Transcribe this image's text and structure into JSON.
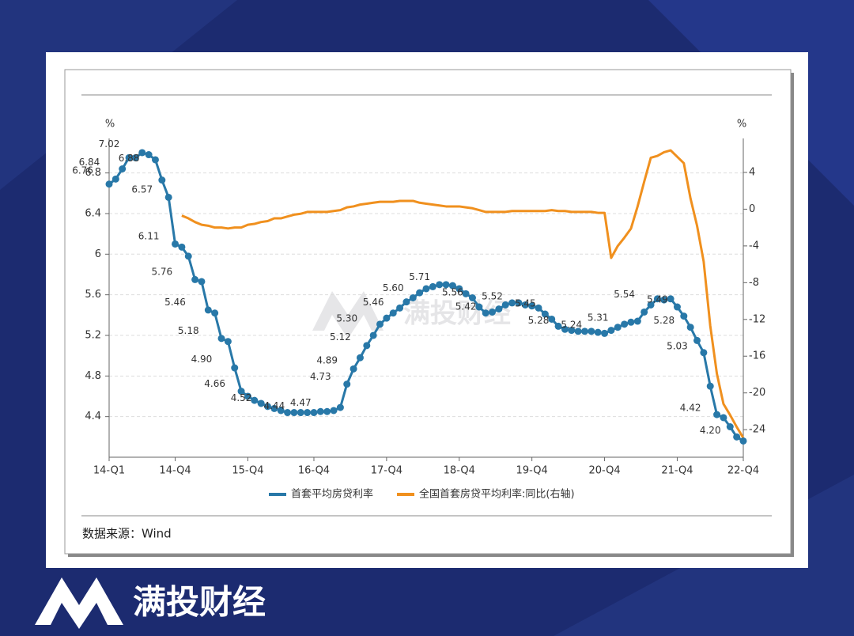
{
  "brand": "满投财经",
  "chart_data": {
    "type": "line",
    "ylabel": "%",
    "y2label": "%",
    "source": "数据来源：Wind",
    "categories": [
      "14-Q1",
      null,
      null,
      null,
      null,
      null,
      null,
      null,
      null,
      null,
      "14-Q4",
      null,
      null,
      null,
      null,
      null,
      null,
      null,
      null,
      null,
      null,
      "15-Q4",
      null,
      null,
      null,
      null,
      null,
      null,
      null,
      null,
      null,
      "16-Q4",
      null,
      null,
      null,
      null,
      null,
      null,
      null,
      null,
      null,
      null,
      "17-Q4",
      null,
      null,
      null,
      null,
      null,
      null,
      null,
      null,
      null,
      null,
      "18-Q4",
      null,
      null,
      null,
      null,
      null,
      null,
      null,
      null,
      null,
      null,
      "19-Q4",
      null,
      null,
      null,
      null,
      null,
      null,
      null,
      null,
      null,
      null,
      "20-Q4",
      null,
      null,
      null,
      null,
      null,
      null,
      null,
      null,
      null,
      null,
      "21-Q4",
      null,
      null,
      null,
      null,
      null,
      null,
      null,
      null,
      null,
      "22-Q4"
    ],
    "series": [
      {
        "name": "首套平均房贷利率",
        "color": "#2878a8",
        "markers": true,
        "values": [
          6.69,
          6.74,
          6.84,
          6.95,
          6.95,
          7.0,
          6.98,
          6.93,
          6.73,
          6.56,
          6.1,
          6.07,
          5.98,
          5.75,
          5.73,
          5.45,
          5.42,
          5.17,
          5.14,
          4.88,
          4.65,
          4.6,
          4.56,
          4.53,
          4.5,
          4.48,
          4.46,
          4.44,
          4.44,
          4.44,
          4.44,
          4.44,
          4.45,
          4.45,
          4.46,
          4.49,
          4.72,
          4.87,
          4.98,
          5.1,
          5.2,
          5.31,
          5.37,
          5.42,
          5.47,
          5.53,
          5.57,
          5.62,
          5.66,
          5.68,
          5.7,
          5.7,
          5.69,
          5.66,
          5.61,
          5.57,
          5.48,
          5.42,
          5.43,
          5.46,
          5.5,
          5.52,
          5.52,
          5.5,
          5.49,
          5.47,
          5.41,
          5.36,
          5.29,
          5.26,
          5.25,
          5.24,
          5.24,
          5.24,
          5.23,
          5.22,
          5.25,
          5.28,
          5.31,
          5.33,
          5.34,
          5.43,
          5.5,
          5.56,
          5.55,
          5.56,
          5.48,
          5.39,
          5.28,
          5.15,
          5.03,
          4.7,
          4.42,
          4.39,
          4.3,
          4.2,
          4.16
        ]
      },
      {
        "name": "全国首套房贷平均利率:同比(右轴)",
        "color": "#f0901e",
        "axis": "y2",
        "markers": false,
        "values": [
          null,
          null,
          null,
          null,
          null,
          null,
          null,
          null,
          null,
          null,
          null,
          -0.7,
          -1.0,
          -1.4,
          -1.7,
          -1.8,
          -2.0,
          -2.0,
          -2.1,
          -2.0,
          -2.0,
          -1.7,
          -1.6,
          -1.4,
          -1.3,
          -1.0,
          -1.0,
          -0.8,
          -0.6,
          -0.5,
          -0.3,
          -0.3,
          -0.3,
          -0.3,
          -0.2,
          -0.1,
          0.2,
          0.3,
          0.5,
          0.6,
          0.7,
          0.8,
          0.8,
          0.8,
          0.9,
          0.9,
          0.9,
          0.7,
          0.6,
          0.5,
          0.4,
          0.3,
          0.3,
          0.3,
          0.2,
          0.1,
          -0.1,
          -0.3,
          -0.3,
          -0.3,
          -0.3,
          -0.2,
          -0.2,
          -0.2,
          -0.2,
          -0.2,
          -0.2,
          -0.1,
          -0.2,
          -0.2,
          -0.3,
          -0.3,
          -0.3,
          -0.3,
          -0.4,
          -0.4,
          -5.3,
          -4.0,
          -3.1,
          -2.1,
          0.3,
          3.0,
          5.6,
          5.8,
          6.2,
          6.4,
          5.7,
          5.0,
          1.2,
          -1.8,
          -5.7,
          -12.7,
          -17.9,
          -21.2,
          -22.4,
          -23.7,
          -24.9
        ]
      }
    ],
    "label_points": {
      "x": [
        -4,
        -3,
        0,
        3,
        5,
        6,
        8,
        10,
        12,
        14,
        16,
        20,
        25,
        29,
        32,
        33,
        35,
        36,
        40,
        43,
        47,
        52,
        54,
        58,
        63,
        65,
        70,
        74,
        78,
        83,
        84,
        86,
        88,
        91
      ],
      "values": [
        6.76,
        6.84,
        7.02,
        6.88,
        6.57,
        6.11,
        5.76,
        5.46,
        5.18,
        4.9,
        4.66,
        4.52,
        4.44,
        4.47,
        4.73,
        4.89,
        5.12,
        5.3,
        5.46,
        5.6,
        5.71,
        5.56,
        5.42,
        5.52,
        5.45,
        5.28,
        5.24,
        5.31,
        5.54,
        5.49,
        5.28,
        5.03,
        4.42,
        4.2
      ],
      "value_labels": [
        "6.76",
        "6.84",
        "7.02",
        "6.88",
        "6.57",
        "6.11",
        "5.76",
        "5.46",
        "5.18",
        "4.90",
        "4.66",
        "4.52",
        "4.44",
        "4.47",
        "4.73",
        "4.89",
        "5.12",
        "5.30",
        "5.46",
        "5.60",
        "5.71",
        "5.56",
        "5.42",
        "5.52",
        "5.45",
        "5.28",
        "5.24",
        "5.31",
        "5.54",
        "5.49",
        "5.28",
        "5.03",
        "4.42",
        "4.20"
      ]
    },
    "ylim": [
      4,
      7.14
    ],
    "yticks": [
      4.4,
      4.8,
      5.2,
      5.6,
      6,
      6.4,
      6.8
    ],
    "y2lim": [
      -27,
      7.7
    ],
    "y2ticks": [
      -24,
      -20,
      -16,
      -12,
      -8,
      -4,
      0,
      4
    ],
    "grid": true,
    "legend": "bottom"
  }
}
